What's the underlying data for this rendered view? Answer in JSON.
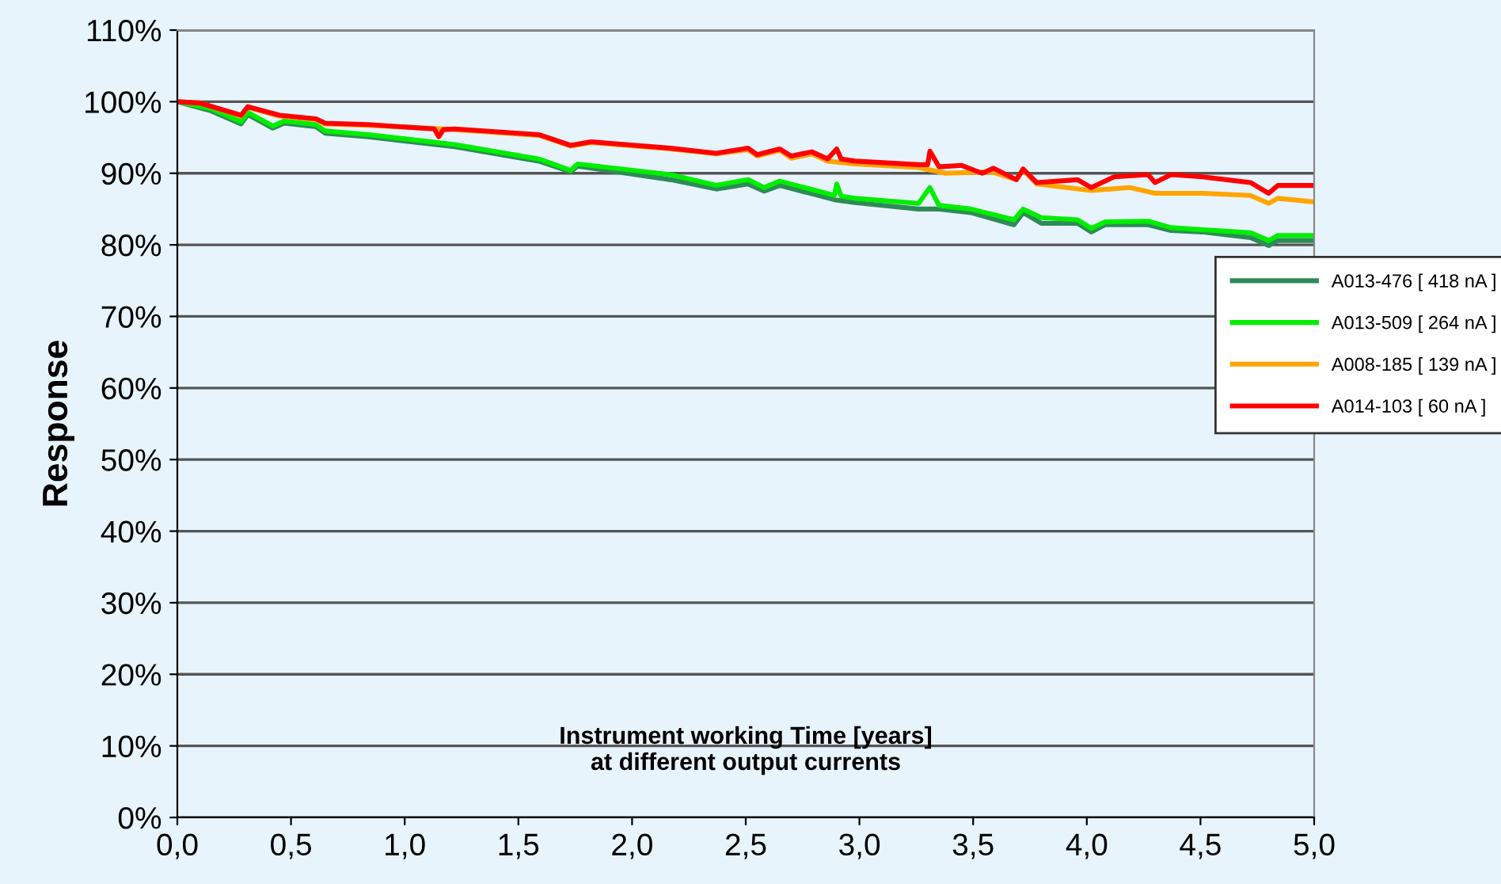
{
  "chart_data": {
    "type": "line",
    "ylabel": "Response",
    "annotations": [
      "Instrument working Time [years]\nat different output currents"
    ],
    "xlim": [
      0,
      5
    ],
    "xticks": [
      {
        "value": 0,
        "label": "0,0"
      },
      {
        "value": 0.5,
        "label": "0,5"
      },
      {
        "value": 1,
        "label": "1,0"
      },
      {
        "value": 1.5,
        "label": "1,5"
      },
      {
        "value": 2,
        "label": "2,0"
      },
      {
        "value": 2.5,
        "label": "2,5"
      },
      {
        "value": 3,
        "label": "3,0"
      },
      {
        "value": 3.5,
        "label": "3,5"
      },
      {
        "value": 4,
        "label": "4,0"
      },
      {
        "value": 4.5,
        "label": "4,5"
      },
      {
        "value": 5,
        "label": "5,0"
      }
    ],
    "ylim": [
      0,
      110
    ],
    "yticks": [
      {
        "value": 0,
        "label": "0%"
      },
      {
        "value": 10,
        "label": "10%"
      },
      {
        "value": 20,
        "label": "20%"
      },
      {
        "value": 30,
        "label": "30%"
      },
      {
        "value": 40,
        "label": "40%"
      },
      {
        "value": 50,
        "label": "50%"
      },
      {
        "value": 60,
        "label": "60%"
      },
      {
        "value": 70,
        "label": "70%"
      },
      {
        "value": 80,
        "label": "80%"
      },
      {
        "value": 90,
        "label": "90%"
      },
      {
        "value": 100,
        "label": "100%"
      },
      {
        "value": 110,
        "label": "110%"
      }
    ],
    "grid": "y",
    "legend": "right",
    "marker": "none",
    "line_style": "solid",
    "series": [
      {
        "name": "A013-476 [ 418 nA ]",
        "color": "#2e8b57",
        "x": [
          0,
          0.15,
          0.28,
          0.31,
          0.42,
          0.47,
          0.61,
          0.65,
          0.84,
          1.22,
          1.59,
          1.73,
          1.76,
          2.17,
          2.37,
          2.51,
          2.58,
          2.65,
          2.89,
          2.98,
          3.26,
          3.35,
          3.49,
          3.68,
          3.72,
          3.8,
          3.96,
          4.02,
          4.08,
          4.27,
          4.37,
          4.51,
          4.72,
          4.8,
          4.84,
          5.0
        ],
        "values": [
          100,
          98.7,
          96.9,
          98.2,
          96.3,
          97.0,
          96.5,
          95.6,
          95.1,
          93.7,
          91.7,
          90.2,
          91.0,
          89.1,
          87.8,
          88.5,
          87.5,
          88.3,
          86.3,
          85.9,
          85.0,
          85.0,
          84.5,
          82.8,
          84.5,
          83.0,
          83.0,
          81.8,
          82.8,
          82.8,
          82.0,
          81.8,
          81.0,
          79.9,
          80.6,
          80.6
        ]
      },
      {
        "name": "A013-509 [ 264 nA ]",
        "color": "#00ee00",
        "x": [
          0,
          0.15,
          0.28,
          0.31,
          0.42,
          0.47,
          0.61,
          0.65,
          0.84,
          1.22,
          1.59,
          1.73,
          1.76,
          2.17,
          2.37,
          2.51,
          2.58,
          2.65,
          2.89,
          2.9,
          2.92,
          2.98,
          3.26,
          3.31,
          3.35,
          3.49,
          3.68,
          3.72,
          3.8,
          3.96,
          4.02,
          4.08,
          4.27,
          4.37,
          4.51,
          4.72,
          4.8,
          4.84,
          5.0
        ],
        "values": [
          100,
          99.0,
          97.2,
          98.5,
          96.6,
          97.3,
          96.8,
          95.9,
          95.4,
          94.0,
          92.0,
          90.4,
          91.3,
          89.8,
          88.3,
          89.1,
          88.0,
          88.9,
          86.9,
          88.5,
          86.8,
          86.5,
          85.8,
          88.0,
          85.5,
          85.0,
          83.5,
          85.0,
          83.8,
          83.5,
          82.3,
          83.2,
          83.3,
          82.4,
          82.1,
          81.7,
          80.6,
          81.3,
          81.3
        ]
      },
      {
        "name": "A008-185 [ 139 nA ]",
        "color": "#ffa500",
        "x": [
          0,
          0.1,
          0.28,
          0.31,
          0.45,
          0.61,
          0.65,
          0.84,
          1.22,
          1.59,
          1.73,
          1.82,
          2.17,
          2.37,
          2.51,
          2.55,
          2.65,
          2.7,
          2.79,
          2.86,
          2.98,
          3.26,
          3.38,
          3.58,
          3.69,
          3.72,
          3.78,
          4.02,
          4.19,
          4.3,
          4.51,
          4.72,
          4.8,
          4.84,
          5.0
        ],
        "values": [
          100,
          99.8,
          98.0,
          99.2,
          98.0,
          97.5,
          96.9,
          96.7,
          96.1,
          95.3,
          93.8,
          94.3,
          93.4,
          92.7,
          93.3,
          92.4,
          93.2,
          92.1,
          92.7,
          91.7,
          91.3,
          90.8,
          90.0,
          90.2,
          89.1,
          90.5,
          88.5,
          87.6,
          88.0,
          87.2,
          87.2,
          86.9,
          85.8,
          86.5,
          86.0
        ]
      },
      {
        "name": "A014-103 [ 60 nA ]",
        "color": "#ff0000",
        "x": [
          0,
          0.1,
          0.28,
          0.31,
          0.45,
          0.61,
          0.65,
          0.84,
          1.13,
          1.15,
          1.17,
          1.22,
          1.59,
          1.73,
          1.82,
          2.17,
          2.37,
          2.51,
          2.55,
          2.65,
          2.7,
          2.79,
          2.86,
          2.9,
          2.92,
          2.98,
          3.26,
          3.3,
          3.31,
          3.35,
          3.45,
          3.54,
          3.59,
          3.69,
          3.72,
          3.78,
          3.96,
          4.02,
          4.12,
          4.27,
          4.3,
          4.37,
          4.51,
          4.72,
          4.8,
          4.84,
          5.0
        ],
        "values": [
          100,
          99.8,
          98.1,
          99.3,
          98.1,
          97.6,
          97.0,
          96.8,
          96.2,
          95.1,
          96.1,
          96.2,
          95.4,
          93.9,
          94.4,
          93.5,
          92.8,
          93.5,
          92.6,
          93.4,
          92.4,
          93.0,
          92.0,
          93.4,
          92.0,
          91.7,
          91.2,
          91.2,
          93.1,
          90.9,
          91.1,
          90.0,
          90.7,
          89.1,
          90.6,
          88.7,
          89.1,
          88.0,
          89.5,
          89.8,
          88.7,
          89.8,
          89.5,
          88.7,
          87.2,
          88.3,
          88.3
        ]
      }
    ]
  }
}
